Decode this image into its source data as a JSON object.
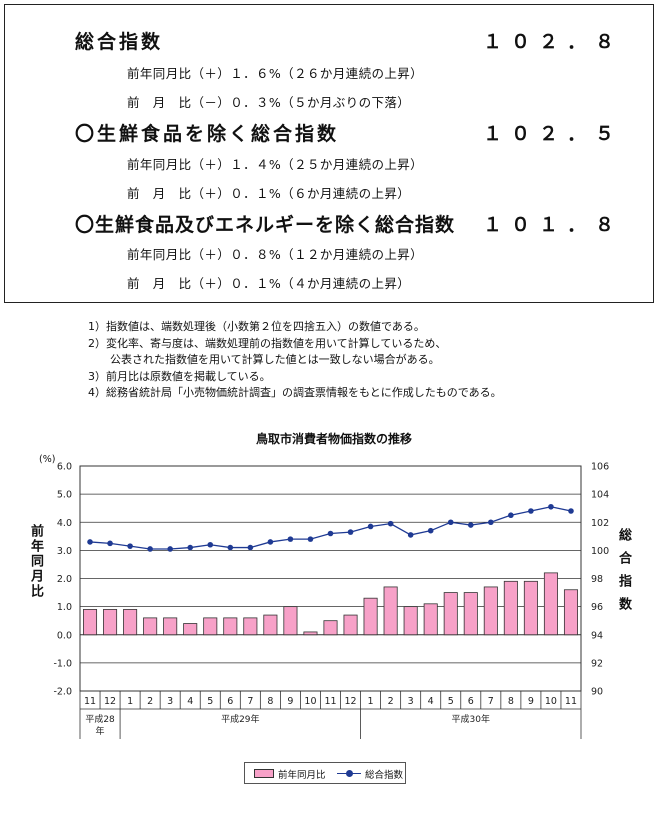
{
  "summary": {
    "sections": [
      {
        "title": "総合指数",
        "value": "１０２．８",
        "lines": [
          "前年同月比（＋）１．６%（２６か月連続の上昇）",
          "前　月　比（－）０．３%（５か月ぶりの下落）"
        ]
      },
      {
        "title": "〇生鮮食品を除く総合指数",
        "value": "１０２．５",
        "lines": [
          "前年同月比（＋）１．４%（２５か月連続の上昇）",
          "前　月　比（＋）０．１%（６か月連続の上昇）"
        ]
      },
      {
        "title": "〇生鮮食品及びエネルギーを除く総合指数",
        "value": "１０１．８",
        "lines": [
          "前年同月比（＋）０．８%（１２か月連続の上昇）",
          "前　月　比（＋）０．１%（４か月連続の上昇）"
        ]
      }
    ]
  },
  "notes": [
    "1）指数値は、端数処理後（小数第２位を四捨五入）の数値である。",
    "2）変化率、寄与度は、端数処理前の指数値を用いて計算しているため、",
    "　　公表された指数値を用いて計算した値とは一致しない場合がある。",
    "3）前月比は原数値を掲載している。",
    "4）総務省統計局「小売物価統計調査」の調査票情報をもとに作成したものである。"
  ],
  "chart_data": {
    "type": "bar",
    "title": "鳥取市消費者物価指数の推移",
    "unit_label": "(%)",
    "ylabel_left": "前年同月比",
    "ylabel_right": "総合指数",
    "categories": [
      "11",
      "12",
      "1",
      "2",
      "3",
      "4",
      "5",
      "6",
      "7",
      "8",
      "9",
      "10",
      "11",
      "12",
      "1",
      "2",
      "3",
      "4",
      "5",
      "6",
      "7",
      "8",
      "9",
      "10",
      "11"
    ],
    "year_labels": [
      {
        "label": "平成28年",
        "from": 0,
        "to": 1
      },
      {
        "label": "平成29年",
        "from": 2,
        "to": 13
      },
      {
        "label": "平成30年",
        "from": 14,
        "to": 24
      }
    ],
    "ylim": [
      -2.0,
      6.0
    ],
    "yticks": [
      "-2.0",
      "-1.0",
      "0.0",
      "1.0",
      "2.0",
      "3.0",
      "4.0",
      "5.0",
      "6.0"
    ],
    "y2lim": [
      90,
      106
    ],
    "y2ticks": [
      "90",
      "92",
      "94",
      "96",
      "98",
      "100",
      "102",
      "104",
      "106"
    ],
    "grid": true,
    "legend_position": "bottom",
    "series": [
      {
        "name": "前年同月比",
        "type": "bar",
        "axis": "left",
        "color": "#f7a1c8",
        "values": [
          0.9,
          0.9,
          0.9,
          0.6,
          0.6,
          0.4,
          0.6,
          0.6,
          0.6,
          0.7,
          1.0,
          0.1,
          0.5,
          0.7,
          1.3,
          1.7,
          1.0,
          1.1,
          1.5,
          1.5,
          1.7,
          1.9,
          1.9,
          2.2,
          1.6
        ]
      },
      {
        "name": "総合指数",
        "type": "line",
        "axis": "right",
        "color": "#1f3a93",
        "values": [
          100.6,
          100.5,
          100.3,
          100.1,
          100.1,
          100.2,
          100.4,
          100.2,
          100.2,
          100.6,
          100.8,
          100.8,
          101.2,
          101.3,
          101.7,
          101.9,
          101.1,
          101.4,
          102.0,
          101.8,
          102.0,
          102.5,
          102.8,
          103.1,
          102.8
        ]
      }
    ]
  }
}
